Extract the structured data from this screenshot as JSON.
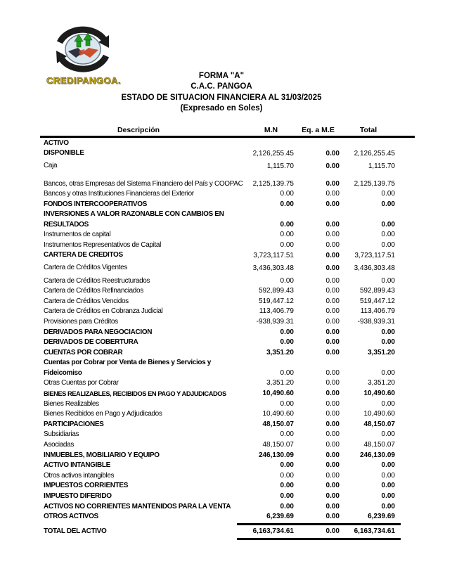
{
  "colors": {
    "brand_gold": "#c9ae1a",
    "outline_brown": "#6f5c12",
    "arrow_black": "#1c1c1c",
    "ellipse_blue": "#d8e6ef",
    "arrow_green": "#1f9b20",
    "hand_dark": "#32323c",
    "hand_red": "#c8502e",
    "line_black": "#000000"
  },
  "logo": {
    "brand": "CREDIPANGOA.",
    "icon": "circular-arrows-handshake-icon"
  },
  "header": {
    "form": "FORMA \"A\"",
    "entity": "C.A.C. PANGOA",
    "title": "ESTADO DE SITUACION FINANCIERA AL 31/03/2025",
    "subtitle": "(Expresado en Soles)"
  },
  "table": {
    "columns": [
      "Descripción",
      "M.N",
      "Eq. a M.E",
      "Total"
    ],
    "rows": [
      {
        "label": "ACTIVO",
        "mn": "",
        "eq": "",
        "total": "",
        "label_bold": true
      },
      {
        "label": "DISPONIBLE",
        "mn": "2,126,255.45",
        "eq": "0.00",
        "total": "2,126,255.45",
        "label_bold": true,
        "eq_bold": true,
        "offset": true
      },
      {
        "label": "Caja",
        "mn": "1,115.70",
        "eq": "0.00",
        "total": "1,115.70",
        "eq_bold": true,
        "offset": true
      },
      {
        "label": "Bancos, otras Empresas del Sistema Financiero del País y COOPAC",
        "mn": "2,125,139.75",
        "eq": "0.00",
        "total": "2,125,139.75",
        "eq_bold": true,
        "gap_before": true
      },
      {
        "label": "Bancos y otras Instituciones Financieras del Exterior",
        "mn": "0.00",
        "eq": "0.00",
        "total": "0.00"
      },
      {
        "label": "FONDOS INTERCOOPERATIVOS",
        "mn": "0.00",
        "eq": "0.00",
        "total": "0.00",
        "label_bold": true,
        "values_bold": true
      },
      {
        "label": "INVERSIONES A VALOR RAZONABLE CON CAMBIOS EN\nRESULTADOS",
        "mn": "0.00",
        "eq": "0.00",
        "total": "0.00",
        "label_bold": true,
        "values_bold": true
      },
      {
        "label": "Instrumentos de capital",
        "mn": "0.00",
        "eq": "0.00",
        "total": "0.00"
      },
      {
        "label": "Instrumentos Representativos de Capital",
        "mn": "0.00",
        "eq": "0.00",
        "total": "0.00"
      },
      {
        "label": "CARTERA DE CREDITOS",
        "mn": "3,723,117.51",
        "eq": "0.00",
        "total": "3,723,117.51",
        "label_bold": true,
        "eq_bold": true,
        "offset": true
      },
      {
        "label": "Cartera de Créditos Vigentes",
        "mn": "3,436,303.48",
        "eq": "0.00",
        "total": "3,436,303.48",
        "eq_bold": true,
        "offset": true
      },
      {
        "label": "Cartera de Créditos Reestructurados",
        "mn": "0.00",
        "eq": "0.00",
        "total": "0.00"
      },
      {
        "label": "Cartera de Créditos Refinanciados",
        "mn": "592,899.43",
        "eq": "0.00",
        "total": "592,899.43"
      },
      {
        "label": "Cartera de Créditos Vencidos",
        "mn": "519,447.12",
        "eq": "0.00",
        "total": "519,447.12"
      },
      {
        "label": "Cartera de Créditos en Cobranza Judicial",
        "mn": "113,406.79",
        "eq": "0.00",
        "total": "113,406.79"
      },
      {
        "label": "Provisiones para Créditos",
        "mn": "-938,939.31",
        "eq": "0.00",
        "total": "-938,939.31"
      },
      {
        "label": "DERIVADOS PARA NEGOCIACION",
        "mn": "0.00",
        "eq": "0.00",
        "total": "0.00",
        "label_bold": true,
        "values_bold": true
      },
      {
        "label": "DERIVADOS DE COBERTURA",
        "mn": "0.00",
        "eq": "0.00",
        "total": "0.00",
        "label_bold": true,
        "values_bold": true
      },
      {
        "label": "CUENTAS POR COBRAR",
        "mn": "3,351.20",
        "eq": "0.00",
        "total": "3,351.20",
        "label_bold": true,
        "values_bold": true
      },
      {
        "label": "Cuentas por Cobrar por Venta de Bienes y Servicios y\nFideicomiso",
        "mn": "0.00",
        "eq": "0.00",
        "total": "0.00",
        "label_bold": true
      },
      {
        "label": "Otras Cuentas por Cobrar",
        "mn": "3,351.20",
        "eq": "0.00",
        "total": "3,351.20"
      },
      {
        "label": "BIENES REALIZABLES, RECIBIDOS EN PAGO Y ADJUDICADOS",
        "mn": "10,490.60",
        "eq": "0.00",
        "total": "10,490.60",
        "label_bold": true,
        "values_bold": true,
        "condensed": true
      },
      {
        "label": "Bienes Realizables",
        "mn": "0.00",
        "eq": "0.00",
        "total": "0.00"
      },
      {
        "label": "Bienes Recibidos en Pago y Adjudicados",
        "mn": "10,490.60",
        "eq": "0.00",
        "total": "10,490.60"
      },
      {
        "label": "PARTICIPACIONES",
        "mn": "48,150.07",
        "eq": "0.00",
        "total": "48,150.07",
        "label_bold": true,
        "values_bold": true
      },
      {
        "label": "Subsidiarias",
        "mn": "0.00",
        "eq": "0.00",
        "total": "0.00"
      },
      {
        "label": "Asociadas",
        "mn": "48,150.07",
        "eq": "0.00",
        "total": "48,150.07"
      },
      {
        "label": "INMUEBLES, MOBILIARIO Y EQUIPO",
        "mn": "246,130.09",
        "eq": "0.00",
        "total": "246,130.09",
        "label_bold": true,
        "values_bold": true
      },
      {
        "label": "ACTIVO INTANGIBLE",
        "mn": "0.00",
        "eq": "0.00",
        "total": "0.00",
        "label_bold": true,
        "values_bold": true
      },
      {
        "label": "Otros activos intangibles",
        "mn": "0.00",
        "eq": "0.00",
        "total": "0.00"
      },
      {
        "label": "IMPUESTOS CORRIENTES",
        "mn": "0.00",
        "eq": "0.00",
        "total": "0.00",
        "label_bold": true,
        "values_bold": true
      },
      {
        "label": "IMPUESTO DIFERIDO",
        "mn": "0.00",
        "eq": "0.00",
        "total": "0.00",
        "label_bold": true,
        "values_bold": true
      },
      {
        "label": "ACTIVOS NO CORRIENTES MANTENIDOS PARA LA VENTA",
        "mn": "0.00",
        "eq": "0.00",
        "total": "0.00",
        "label_bold": true,
        "values_bold": true
      },
      {
        "label": "OTROS ACTIVOS",
        "mn": "6,239.69",
        "eq": "0.00",
        "total": "6,239.69",
        "label_bold": true,
        "values_bold": true
      },
      {
        "label": "TOTAL DEL ACTIVO",
        "mn": "6,163,734.61",
        "eq": "0.00",
        "total": "6,163,734.61",
        "label_bold": true,
        "values_bold": true,
        "is_total": true
      }
    ]
  }
}
